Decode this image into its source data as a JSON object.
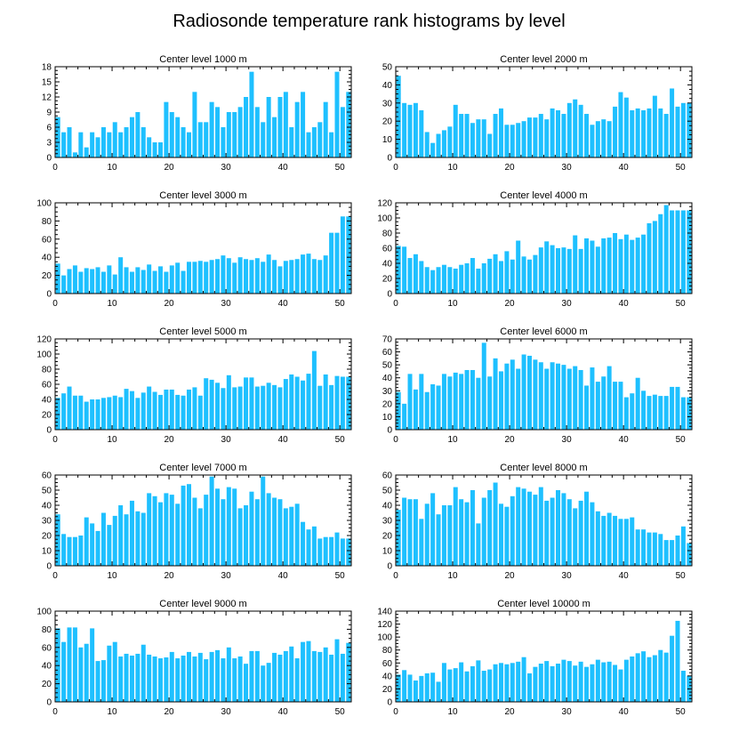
{
  "figure": {
    "title": "Radiosonde temperature rank histograms by level",
    "bar_color": "#1ec0ff"
  },
  "chart_data": [
    {
      "type": "bar",
      "title": "Center level 1000 m",
      "xlim": [
        0,
        52
      ],
      "ylim": [
        0,
        18
      ],
      "xticks": [
        0,
        10,
        20,
        30,
        40,
        50
      ],
      "yticks": [
        0,
        3,
        6,
        9,
        12,
        15,
        18
      ],
      "values": [
        8,
        5,
        6,
        1,
        5,
        2,
        5,
        4,
        6,
        5,
        7,
        5,
        6,
        8,
        9,
        6,
        4,
        3,
        3,
        11,
        9,
        8,
        6,
        5,
        13,
        7,
        7,
        11,
        10,
        6,
        9,
        9,
        10,
        12,
        17,
        10,
        7,
        12,
        8,
        12,
        13,
        6,
        11,
        13,
        5,
        6,
        7,
        11,
        5,
        17,
        10,
        13
      ]
    },
    {
      "type": "bar",
      "title": "Center level 2000 m",
      "xlim": [
        0,
        52
      ],
      "ylim": [
        0,
        50
      ],
      "xticks": [
        0,
        10,
        20,
        30,
        40,
        50
      ],
      "yticks": [
        0,
        10,
        20,
        30,
        40,
        50
      ],
      "values": [
        45,
        30,
        29,
        30,
        26,
        14,
        8,
        13,
        15,
        17,
        29,
        24,
        24,
        19,
        21,
        21,
        13,
        24,
        27,
        18,
        18,
        19,
        20,
        22,
        22,
        24,
        21,
        27,
        26,
        24,
        30,
        32,
        29,
        24,
        18,
        20,
        21,
        20,
        28,
        36,
        33,
        26,
        27,
        26,
        27,
        34,
        27,
        24,
        38,
        28,
        30,
        30
      ]
    },
    {
      "type": "bar",
      "title": "Center level 3000 m",
      "xlim": [
        0,
        52
      ],
      "ylim": [
        0,
        100
      ],
      "xticks": [
        0,
        10,
        20,
        30,
        40,
        50
      ],
      "yticks": [
        0,
        20,
        40,
        60,
        80,
        100
      ],
      "values": [
        33,
        20,
        27,
        31,
        24,
        28,
        27,
        29,
        24,
        31,
        21,
        40,
        29,
        24,
        29,
        26,
        32,
        25,
        30,
        24,
        31,
        34,
        25,
        35,
        35,
        36,
        35,
        37,
        38,
        42,
        39,
        34,
        40,
        38,
        37,
        39,
        35,
        43,
        37,
        30,
        36,
        37,
        38,
        43,
        44,
        38,
        37,
        42,
        67,
        67,
        85,
        85
      ]
    },
    {
      "type": "bar",
      "title": "Center level 4000 m",
      "xlim": [
        0,
        52
      ],
      "ylim": [
        0,
        120
      ],
      "xticks": [
        0,
        10,
        20,
        30,
        40,
        50
      ],
      "yticks": [
        0,
        20,
        40,
        60,
        80,
        100,
        120
      ],
      "values": [
        63,
        62,
        47,
        52,
        43,
        35,
        31,
        35,
        38,
        35,
        33,
        38,
        40,
        47,
        33,
        40,
        46,
        52,
        43,
        56,
        45,
        70,
        49,
        45,
        51,
        61,
        69,
        64,
        60,
        61,
        59,
        77,
        59,
        73,
        70,
        62,
        73,
        74,
        80,
        72,
        78,
        71,
        74,
        78,
        93,
        96,
        105,
        117,
        110,
        110,
        110,
        110
      ]
    },
    {
      "type": "bar",
      "title": "Center level 5000 m",
      "xlim": [
        0,
        52
      ],
      "ylim": [
        0,
        120
      ],
      "xticks": [
        0,
        10,
        20,
        30,
        40,
        50
      ],
      "yticks": [
        0,
        20,
        40,
        60,
        80,
        100,
        120
      ],
      "values": [
        42,
        48,
        57,
        45,
        45,
        37,
        40,
        40,
        42,
        43,
        45,
        43,
        54,
        51,
        42,
        49,
        57,
        50,
        46,
        53,
        53,
        46,
        45,
        53,
        56,
        45,
        68,
        66,
        62,
        55,
        72,
        56,
        57,
        69,
        69,
        57,
        58,
        62,
        59,
        56,
        67,
        73,
        70,
        65,
        74,
        104,
        58,
        73,
        59,
        71,
        70,
        70
      ]
    },
    {
      "type": "bar",
      "title": "Center level 6000 m",
      "xlim": [
        0,
        52
      ],
      "ylim": [
        0,
        70
      ],
      "xticks": [
        0,
        10,
        20,
        30,
        40,
        50
      ],
      "yticks": [
        0,
        10,
        20,
        30,
        40,
        50,
        60,
        70
      ],
      "values": [
        29,
        20,
        43,
        31,
        43,
        29,
        35,
        34,
        43,
        41,
        44,
        43,
        46,
        46,
        40,
        67,
        41,
        55,
        45,
        51,
        54,
        47,
        58,
        57,
        54,
        52,
        47,
        52,
        51,
        50,
        47,
        49,
        46,
        34,
        48,
        37,
        41,
        49,
        37,
        37,
        25,
        28,
        40,
        30,
        26,
        27,
        26,
        26,
        33,
        33,
        25,
        25
      ]
    },
    {
      "type": "bar",
      "title": "Center level 7000 m",
      "xlim": [
        0,
        52
      ],
      "ylim": [
        0,
        60
      ],
      "xticks": [
        0,
        10,
        20,
        30,
        40,
        50
      ],
      "yticks": [
        0,
        10,
        20,
        30,
        40,
        50,
        60
      ],
      "values": [
        34,
        21,
        19,
        19,
        20,
        32,
        28,
        23,
        35,
        27,
        33,
        40,
        34,
        43,
        36,
        35,
        48,
        46,
        42,
        48,
        47,
        41,
        53,
        54,
        45,
        38,
        47,
        59,
        51,
        44,
        52,
        51,
        38,
        40,
        49,
        44,
        59,
        48,
        45,
        44,
        38,
        39,
        41,
        29,
        24,
        26,
        18,
        19,
        19,
        22,
        18,
        18
      ]
    },
    {
      "type": "bar",
      "title": "Center level 8000 m",
      "xlim": [
        0,
        52
      ],
      "ylim": [
        0,
        60
      ],
      "xticks": [
        0,
        10,
        20,
        30,
        40,
        50
      ],
      "yticks": [
        0,
        10,
        20,
        30,
        40,
        50,
        60
      ],
      "values": [
        37,
        45,
        44,
        44,
        31,
        41,
        48,
        34,
        40,
        40,
        52,
        44,
        42,
        50,
        28,
        45,
        50,
        55,
        41,
        39,
        46,
        52,
        51,
        49,
        47,
        52,
        43,
        45,
        50,
        48,
        44,
        38,
        43,
        49,
        42,
        36,
        33,
        35,
        33,
        31,
        31,
        32,
        24,
        24,
        22,
        22,
        21,
        17,
        17,
        20,
        26,
        15
      ]
    },
    {
      "type": "bar",
      "title": "Center level 9000 m",
      "xlim": [
        0,
        52
      ],
      "ylim": [
        0,
        100
      ],
      "xticks": [
        0,
        10,
        20,
        30,
        40,
        50
      ],
      "yticks": [
        0,
        20,
        40,
        60,
        80,
        100
      ],
      "values": [
        81,
        66,
        82,
        82,
        60,
        64,
        81,
        45,
        46,
        62,
        66,
        50,
        53,
        51,
        53,
        63,
        52,
        50,
        48,
        49,
        55,
        48,
        51,
        55,
        50,
        54,
        47,
        55,
        57,
        48,
        60,
        48,
        50,
        42,
        56,
        56,
        40,
        43,
        54,
        52,
        56,
        61,
        48,
        66,
        67,
        56,
        55,
        60,
        52,
        69,
        53,
        65
      ]
    },
    {
      "type": "bar",
      "title": "Center level 10000 m",
      "xlim": [
        0,
        52
      ],
      "ylim": [
        0,
        140
      ],
      "xticks": [
        0,
        10,
        20,
        30,
        40,
        50
      ],
      "yticks": [
        0,
        20,
        40,
        60,
        80,
        100,
        120,
        140
      ],
      "values": [
        42,
        49,
        42,
        33,
        40,
        44,
        45,
        31,
        60,
        50,
        52,
        61,
        47,
        55,
        64,
        48,
        50,
        58,
        60,
        58,
        60,
        62,
        69,
        44,
        54,
        59,
        63,
        55,
        59,
        65,
        63,
        56,
        62,
        54,
        58,
        65,
        61,
        62,
        57,
        50,
        65,
        70,
        75,
        78,
        69,
        72,
        80,
        76,
        102,
        125,
        48,
        40
      ]
    }
  ]
}
